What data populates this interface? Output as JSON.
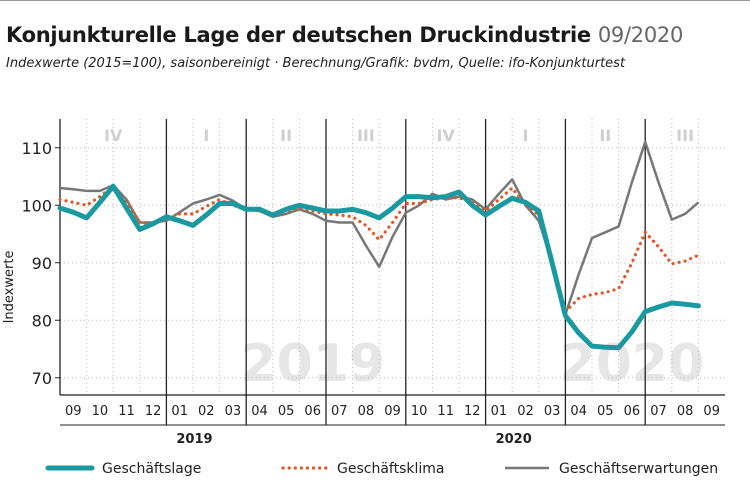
{
  "header": {
    "title": "Konjunkturelle Lage der deutschen Druckindustrie",
    "title_suffix": "09/2020",
    "subtitle": "Indexwerte (2015=100), saisonbereinigt · Berechnung/Grafik: bvdm, Quelle: ifo-Konjunkturtest"
  },
  "chart_data": {
    "type": "line",
    "ylabel": "Indexwerte",
    "ylim": [
      67,
      115
    ],
    "yticks": [
      70,
      80,
      90,
      100,
      110
    ],
    "months": [
      "09",
      "10",
      "11",
      "12",
      "01",
      "02",
      "03",
      "04",
      "05",
      "06",
      "07",
      "08",
      "09",
      "10",
      "11",
      "12",
      "01",
      "02",
      "03",
      "04",
      "05",
      "06",
      "07",
      "08",
      "09"
    ],
    "years": [
      {
        "label": "2019",
        "start_index": 4
      },
      {
        "label": "2020",
        "start_index": 16
      }
    ],
    "watermarks": [
      {
        "label": "2019",
        "index": 9
      },
      {
        "label": "2020",
        "index": 21
      }
    ],
    "quarters": [
      {
        "label": "IV",
        "start": 0,
        "end": 4
      },
      {
        "label": "I",
        "start": 4,
        "end": 7
      },
      {
        "label": "II",
        "start": 7,
        "end": 10
      },
      {
        "label": "III",
        "start": 10,
        "end": 13
      },
      {
        "label": "IV",
        "start": 13,
        "end": 16
      },
      {
        "label": "I",
        "start": 16,
        "end": 19
      },
      {
        "label": "II",
        "start": 19,
        "end": 22
      },
      {
        "label": "III",
        "start": 22,
        "end": 25
      }
    ],
    "x": [
      0,
      1,
      2,
      3,
      4,
      5,
      6,
      7,
      8,
      9,
      10,
      11,
      12,
      13,
      14,
      15,
      16,
      17,
      18,
      19,
      20,
      21,
      22,
      23,
      24,
      25,
      26,
      27,
      28,
      29,
      30,
      31,
      32,
      33,
      34,
      35,
      36,
      37,
      38,
      39,
      40,
      41,
      42,
      43,
      44,
      45,
      46,
      47,
      48
    ],
    "series": [
      {
        "name": "Geschäftslage",
        "color": "#1a9aa0",
        "style": "solid-thick",
        "values": [
          99.5,
          98.8,
          97.8,
          100.5,
          103.3,
          99.5,
          95.8,
          96.8,
          98,
          97.3,
          96.5,
          98.3,
          100.3,
          100.3,
          99.3,
          99.3,
          98.3,
          99.3,
          100,
          99.5,
          99,
          99,
          99.3,
          98.7,
          97.8,
          99.5,
          101.5,
          101.5,
          101.3,
          101.5,
          102.3,
          100,
          98.3,
          99.8,
          101.2,
          100.5,
          99,
          90,
          80.8,
          77.8,
          75.5,
          75.3,
          75.2,
          78,
          81.5,
          82.3,
          83,
          82.8,
          82.5
        ]
      },
      {
        "name": "Geschäftsklima",
        "color": "#e0572a",
        "style": "dotted",
        "values": [
          101,
          100.5,
          100,
          101.5,
          103.3,
          100.5,
          97,
          96.8,
          97.5,
          98.5,
          98.5,
          99.8,
          101,
          100,
          99.3,
          99,
          98.5,
          99,
          99.5,
          99,
          98.5,
          98.3,
          98,
          96.5,
          94,
          97,
          100.3,
          100.3,
          101,
          101.3,
          101.3,
          100.5,
          99,
          101,
          103,
          100,
          98.3,
          90,
          81.5,
          83.8,
          84.5,
          84.8,
          85.5,
          90,
          95.3,
          92.8,
          89.8,
          90.3,
          91.3
        ]
      },
      {
        "name": "Geschäftserwartungen",
        "color": "#777777",
        "style": "solid-thin",
        "values": [
          103,
          102.8,
          102.5,
          102.5,
          103.5,
          101,
          97,
          97,
          97.3,
          98.8,
          100.3,
          101,
          101.8,
          100.8,
          99.3,
          99,
          98,
          98.5,
          99.3,
          98.5,
          97.3,
          97,
          97,
          93,
          89.3,
          94.5,
          98.7,
          100,
          102,
          101,
          101.5,
          101,
          99.3,
          102,
          104.5,
          100,
          97.3,
          90,
          81,
          88,
          94.3,
          95.3,
          96.3,
          104,
          111,
          104,
          97.5,
          98.5,
          100.5
        ]
      }
    ],
    "legend_position": "bottom"
  }
}
